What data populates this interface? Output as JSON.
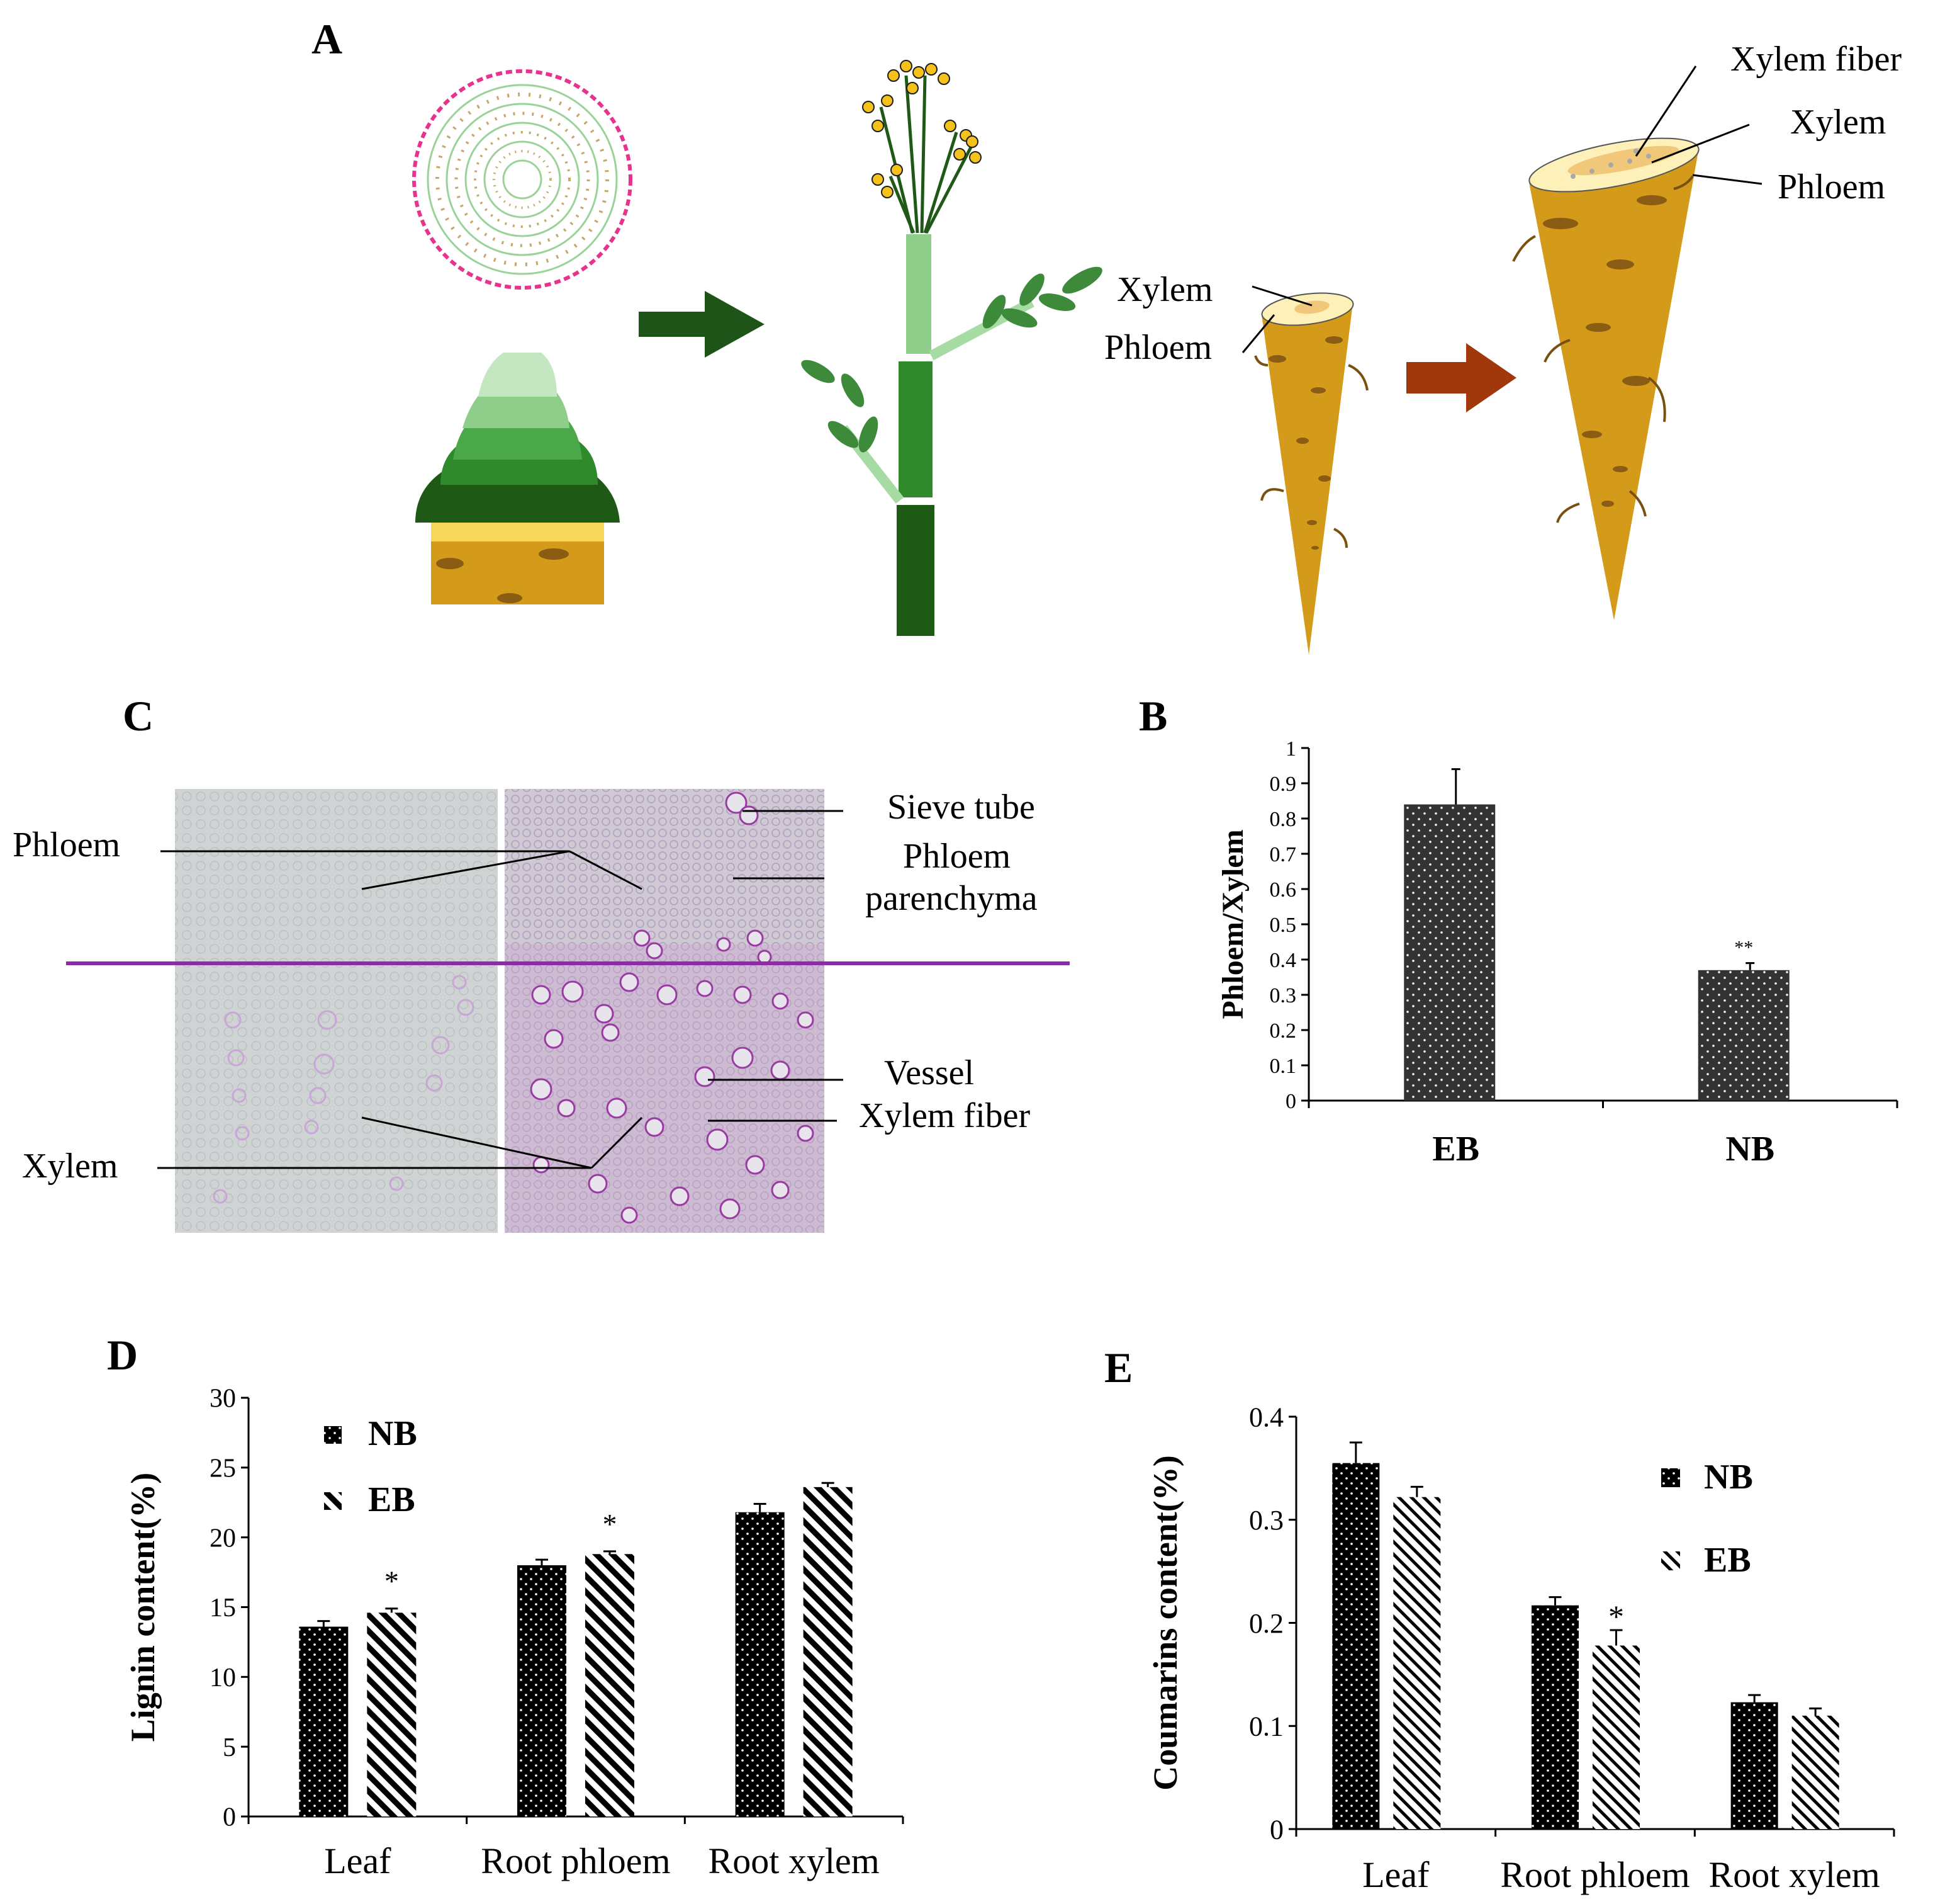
{
  "panels": {
    "A": {
      "letter": "A",
      "labels": {
        "xylem_fiber": "Xylem fiber",
        "xylem_large": "Xylem",
        "phloem_large": "Phloem",
        "xylem_small": "Xylem",
        "phloem_small": "Phloem"
      }
    },
    "B": {
      "letter": "B"
    },
    "C": {
      "letter": "C",
      "labels": {
        "phloem": "Phloem",
        "xylem": "Xylem",
        "sieve_tube": "Sieve tube",
        "phloem_parenchyma_1": "Phloem",
        "phloem_parenchyma_2": "parenchyma",
        "vessel": "Vessel",
        "xylem_fiber": "Xylem fiber"
      }
    },
    "D": {
      "letter": "D"
    },
    "E": {
      "letter": "E"
    }
  },
  "chart_data": [
    {
      "panel": "B",
      "type": "bar",
      "categories": [
        "EB",
        "NB"
      ],
      "values": [
        0.84,
        0.37
      ],
      "errors": [
        0.1,
        0.02
      ],
      "significance": [
        "",
        "**"
      ],
      "ylabel": "Phloem/Xylem",
      "ylim": [
        0,
        1
      ],
      "yticks": [
        "0",
        "0.1",
        "0.2",
        "0.3",
        "0.4",
        "0.5",
        "0.6",
        "0.7",
        "0.8",
        "0.9",
        "1"
      ],
      "bar_color": "#333333"
    },
    {
      "panel": "D",
      "type": "bar",
      "categories": [
        "Leaf",
        "Root phloem",
        "Root xylem"
      ],
      "series": [
        {
          "name": "NB",
          "values": [
            13.6,
            18.0,
            21.8
          ],
          "errors": [
            0.4,
            0.4,
            0.6
          ]
        },
        {
          "name": "EB",
          "values": [
            14.6,
            18.8,
            23.6
          ],
          "errors": [
            0.3,
            0.2,
            0.3
          ]
        }
      ],
      "significance": [
        "*",
        "*",
        ""
      ],
      "ylabel": "Lignin content(%)",
      "ylim": [
        0,
        30
      ],
      "yticks": [
        "0",
        "5",
        "10",
        "15",
        "20",
        "25",
        "30"
      ],
      "legend": "top-left"
    },
    {
      "panel": "E",
      "type": "bar",
      "categories": [
        "Leaf",
        "Root phloem",
        "Root xylem"
      ],
      "series": [
        {
          "name": "NB",
          "values": [
            0.355,
            0.217,
            0.123
          ],
          "errors": [
            0.02,
            0.008,
            0.007
          ]
        },
        {
          "name": "EB",
          "values": [
            0.322,
            0.178,
            0.11
          ],
          "errors": [
            0.01,
            0.015,
            0.007
          ]
        }
      ],
      "significance": [
        "",
        "*",
        ""
      ],
      "ylabel": "Coumarins content(%)",
      "ylim": [
        0,
        0.4
      ],
      "yticks": [
        "0",
        "0.1",
        "0.2",
        "0.3",
        "0.4"
      ],
      "legend": "top-right"
    }
  ]
}
